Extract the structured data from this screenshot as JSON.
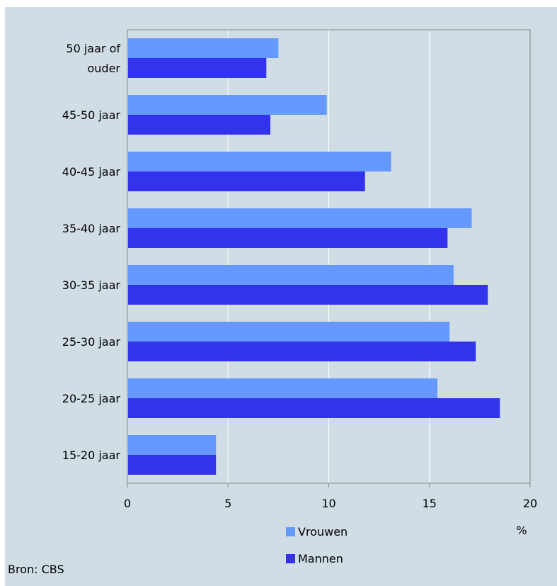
{
  "chart_data": {
    "type": "bar",
    "orientation": "horizontal",
    "title": "",
    "xlabel": "",
    "ylabel": "",
    "unit_label": "%",
    "categories": [
      [
        "50 jaar of",
        "ouder"
      ],
      [
        "45-50 jaar"
      ],
      [
        "40-45 jaar"
      ],
      [
        "35-40 jaar"
      ],
      [
        "30-35 jaar"
      ],
      [
        "25-30 jaar"
      ],
      [
        "20-25 jaar"
      ],
      [
        "15-20 jaar"
      ]
    ],
    "series": [
      {
        "name": "Vrouwen",
        "color": "#6699ff",
        "values": [
          7.5,
          9.9,
          13.1,
          17.1,
          16.2,
          16.0,
          15.4,
          4.4
        ]
      },
      {
        "name": "Mannen",
        "color": "#3333ee",
        "values": [
          6.9,
          7.1,
          11.8,
          15.9,
          17.9,
          17.3,
          18.5,
          4.4
        ]
      }
    ],
    "xlim": [
      0,
      20
    ],
    "xticks": [
      0,
      5,
      10,
      15,
      20
    ],
    "grid": "vertical",
    "legend_position": "bottom"
  },
  "source": "Bron: CBS",
  "colors": {
    "background": "#d0dde5",
    "plot_background": "#d0dde5",
    "gridline": "#ffffff",
    "axis": "#888888"
  }
}
